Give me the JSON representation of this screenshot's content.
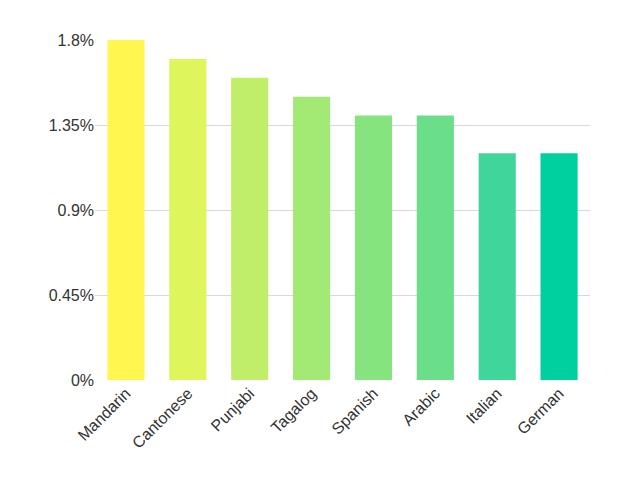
{
  "chart_data": {
    "type": "bar",
    "categories": [
      "Mandarin",
      "Cantonese",
      "Punjabi",
      "Tagalog",
      "Spanish",
      "Arabic",
      "Italian",
      "German"
    ],
    "values": [
      1.8,
      1.7,
      1.6,
      1.5,
      1.4,
      1.4,
      1.2,
      1.2
    ],
    "colors": [
      "#fff650",
      "#def55c",
      "#c0ee69",
      "#a3ea74",
      "#86e47e",
      "#6bde8a",
      "#40d69a",
      "#00cfa0"
    ],
    "ylim": [
      0,
      1.8
    ],
    "yticks": [
      {
        "value": 0,
        "label": "0%"
      },
      {
        "value": 0.45,
        "label": "0.45%"
      },
      {
        "value": 0.9,
        "label": "0.9%"
      },
      {
        "value": 1.35,
        "label": "1.35%"
      },
      {
        "value": 1.8,
        "label": "1.8%"
      }
    ],
    "grid": true
  }
}
